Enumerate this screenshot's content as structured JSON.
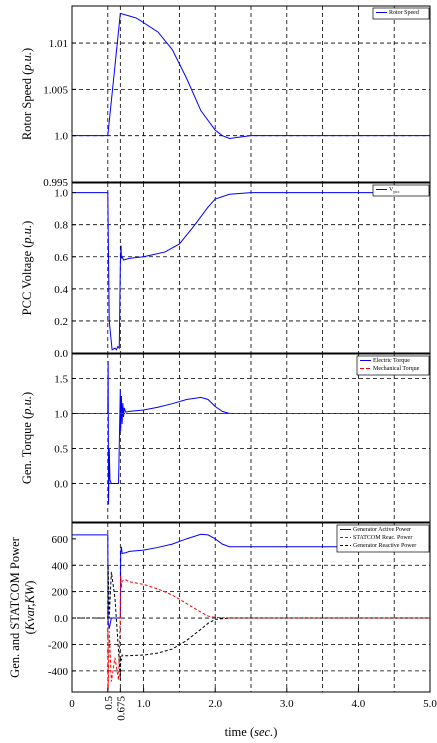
{
  "figure": {
    "xlabel_prefix": "time (",
    "xlabel_unit": "sec.",
    "xlabel_suffix": ")",
    "x_ticks": [
      "0",
      "0.5",
      "0.675",
      "1.0",
      "2.0",
      "3.0",
      "4.0",
      "5.0"
    ],
    "x_tick_values": [
      0,
      0.5,
      0.675,
      1.0,
      2.0,
      3.0,
      4.0,
      5.0
    ],
    "xlim": [
      0,
      5.0
    ],
    "vgrid": [
      0.5,
      0.675,
      1.0,
      1.5,
      2.0,
      2.5,
      3.0,
      3.5,
      4.0,
      4.5
    ],
    "colors": {
      "blue": "#0000ff",
      "red": "#ff0000",
      "black": "#000000"
    }
  },
  "chart_data": [
    {
      "type": "line",
      "id": "speed",
      "ylabel_main": "Rotor Speed (",
      "ylabel_unit": "p.u.",
      "ylabel_end": ")",
      "ylim": [
        0.995,
        1.014
      ],
      "y_ticks": [
        {
          "v": 1.01,
          "label": "1.01"
        },
        {
          "v": 1.005,
          "label": "1.005"
        },
        {
          "v": 1.0,
          "label": "1.0"
        },
        {
          "v": 0.995,
          "label": "0.995"
        }
      ],
      "hgrid": [
        1.01,
        1.005,
        1.0
      ],
      "legend": [
        {
          "label": "Rotor Speed",
          "color": "#0000ff",
          "dash": ""
        }
      ],
      "series": [
        {
          "name": "Rotor Speed",
          "color": "#0000ff",
          "dash": "",
          "x": [
            0,
            0.5,
            0.675,
            0.9,
            1.2,
            1.4,
            1.6,
            1.8,
            2.0,
            2.1,
            2.2,
            2.3,
            2.5,
            5.0
          ],
          "y": [
            1.0,
            1.0,
            1.0132,
            1.0127,
            1.0112,
            1.0093,
            1.0062,
            1.0027,
            1.0006,
            1.0,
            0.9997,
            0.9998,
            1.0,
            1.0
          ]
        }
      ]
    },
    {
      "type": "line",
      "id": "voltage",
      "ylabel_main": "PCC Voltage (",
      "ylabel_unit": "p.u.",
      "ylabel_end": ")",
      "ylim": [
        0.0,
        1.06
      ],
      "y_ticks": [
        {
          "v": 1.0,
          "label": "1.0"
        },
        {
          "v": 0.8,
          "label": "0.8"
        },
        {
          "v": 0.6,
          "label": "0.6"
        },
        {
          "v": 0.4,
          "label": "0.4"
        },
        {
          "v": 0.2,
          "label": "0.2"
        },
        {
          "v": 0.0,
          "label": "0.0"
        }
      ],
      "hgrid": [
        0.8,
        0.6,
        0.4,
        0.2
      ],
      "legend": [
        {
          "label": "V",
          "sub": "pcc",
          "color": "#0000ff",
          "dash": ""
        }
      ],
      "series": [
        {
          "name": "V",
          "color": "#0000ff",
          "dash": "",
          "x": [
            0,
            0.5,
            0.52,
            0.56,
            0.6,
            0.62,
            0.64,
            0.66,
            0.675,
            0.68,
            0.685,
            0.69,
            0.7,
            0.72,
            0.8,
            1.0,
            1.3,
            1.5,
            1.7,
            1.9,
            2.0,
            2.2,
            2.5,
            5.0
          ],
          "y": [
            1.0,
            1.0,
            0.2,
            0.02,
            0.03,
            0.02,
            0.04,
            0.03,
            0.55,
            0.62,
            0.67,
            0.59,
            0.6,
            0.58,
            0.59,
            0.6,
            0.63,
            0.68,
            0.79,
            0.91,
            0.96,
            0.99,
            1.0,
            1.0
          ]
        }
      ]
    },
    {
      "type": "line",
      "id": "torque",
      "ylabel_main": "Gen. Torque (",
      "ylabel_unit": "p.u.",
      "ylabel_end": ")",
      "ylim": [
        -0.55,
        1.85
      ],
      "y_ticks": [
        {
          "v": 1.5,
          "label": "1.5"
        },
        {
          "v": 1.0,
          "label": "1.0"
        },
        {
          "v": 0.5,
          "label": "0.5"
        },
        {
          "v": 0.0,
          "label": "0.0"
        }
      ],
      "hgrid": [
        1.5,
        1.0,
        0.5,
        0.0
      ],
      "legend": [
        {
          "label": "Electric Torque",
          "color": "#0000ff",
          "dash": ""
        },
        {
          "label": "Mechanical Torque",
          "color": "#ff0000",
          "dash": "4,2"
        }
      ],
      "series": [
        {
          "name": "Electric Torque",
          "color": "#0000ff",
          "dash": "",
          "x": [
            0,
            0.5,
            0.505,
            0.51,
            0.52,
            0.53,
            0.55,
            0.6,
            0.65,
            0.675,
            0.68,
            0.69,
            0.7,
            0.71,
            0.72,
            0.73,
            0.75,
            0.8,
            1.0,
            1.2,
            1.4,
            1.6,
            1.8,
            1.9,
            2.0,
            2.1,
            2.2,
            2.4,
            5.0
          ],
          "y": [
            1.0,
            1.0,
            1.75,
            -0.3,
            0.5,
            0.05,
            0.0,
            0.0,
            0.0,
            1.35,
            0.75,
            1.25,
            0.85,
            1.15,
            0.95,
            1.08,
            1.02,
            1.03,
            1.05,
            1.09,
            1.14,
            1.2,
            1.23,
            1.2,
            1.1,
            1.03,
            1.0,
            1.0,
            1.0
          ]
        },
        {
          "name": "Mechanical Torque",
          "color": "#ff0000",
          "dash": "4,2",
          "x": [
            0,
            5.0
          ],
          "y": [
            1.0,
            1.0
          ]
        }
      ]
    },
    {
      "type": "line",
      "id": "power",
      "ylabel_main": "Gen. and STATCOM Power",
      "ylabel_second_pre": "(",
      "ylabel_second_unit": "Kvar,KW",
      "ylabel_second_post": ")",
      "ylim": [
        -560,
        720
      ],
      "y_ticks": [
        {
          "v": 600,
          "label": "600"
        },
        {
          "v": 400,
          "label": "400"
        },
        {
          "v": 200,
          "label": "200"
        },
        {
          "v": 0,
          "label": "0.0"
        },
        {
          "v": -200,
          "label": "-200"
        },
        {
          "v": -400,
          "label": "-400"
        }
      ],
      "hgrid": [
        400,
        200,
        0,
        -200,
        -400
      ],
      "legend": [
        {
          "label": "Generator Active Power",
          "color": "#0000ff",
          "dash": ""
        },
        {
          "label": "STATCOM Reac. Power",
          "color": "#ff0000",
          "dash": "3,2"
        },
        {
          "label": "Generator Reactive Power",
          "color": "#000000",
          "dash": "3,2"
        }
      ],
      "series": [
        {
          "name": "Generator Active Power",
          "color": "#0000ff",
          "dash": "",
          "x": [
            0,
            0.5,
            0.505,
            0.52,
            0.55,
            0.6,
            0.675,
            0.68,
            0.69,
            0.7,
            0.75,
            0.8,
            1.0,
            1.2,
            1.4,
            1.6,
            1.8,
            1.9,
            2.0,
            2.1,
            2.2,
            5.0
          ],
          "y": [
            630,
            630,
            -20,
            -80,
            0,
            0,
            0,
            500,
            540,
            490,
            495,
            505,
            515,
            535,
            560,
            600,
            635,
            630,
            600,
            560,
            540,
            540
          ]
        },
        {
          "name": "STATCOM Reac. Power",
          "color": "#ff0000",
          "dash": "3,2",
          "x": [
            0,
            0.5,
            0.505,
            0.52,
            0.55,
            0.6,
            0.65,
            0.675,
            0.68,
            0.69,
            0.7,
            0.75,
            0.8,
            1.0,
            1.2,
            1.4,
            1.6,
            1.8,
            1.9,
            2.0,
            2.2,
            5.0
          ],
          "y": [
            0,
            0,
            -545,
            -100,
            -480,
            -300,
            -470,
            0,
            320,
            230,
            280,
            290,
            275,
            255,
            220,
            175,
            110,
            45,
            15,
            5,
            0,
            0
          ]
        },
        {
          "name": "Generator Reactive Power",
          "color": "#000000",
          "dash": "3,2",
          "x": [
            0,
            0.5,
            0.505,
            0.52,
            0.55,
            0.6,
            0.65,
            0.675,
            0.68,
            0.69,
            0.7,
            0.75,
            0.8,
            1.0,
            1.2,
            1.4,
            1.6,
            1.8,
            1.9,
            2.0,
            2.2,
            5.0
          ],
          "y": [
            0,
            0,
            400,
            0,
            350,
            150,
            -250,
            -470,
            -300,
            -320,
            -280,
            -285,
            -285,
            -280,
            -265,
            -235,
            -170,
            -85,
            -40,
            -10,
            0,
            0
          ]
        }
      ]
    }
  ]
}
